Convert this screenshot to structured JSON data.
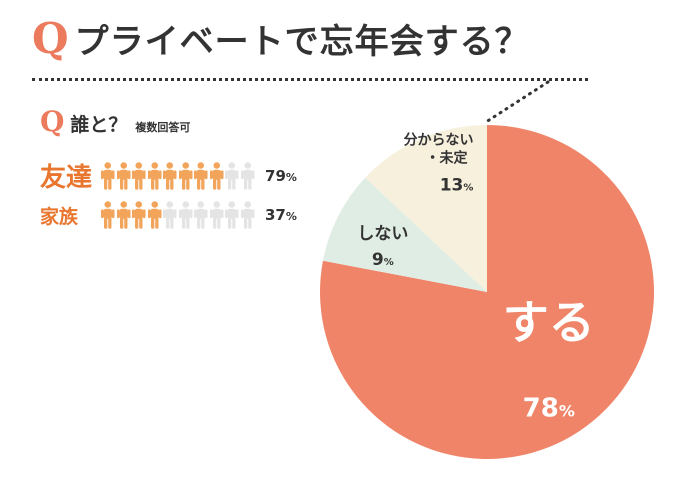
{
  "header": {
    "q_mark": "Q",
    "question": "プライベートで忘年会する？"
  },
  "sub_question": {
    "q_mark": "Q",
    "text": "誰と？",
    "note": "複数回答可"
  },
  "chart_data": [
    {
      "type": "pie",
      "slices": [
        {
          "label": "する",
          "value": 78,
          "display": "78",
          "color": "#ef8468"
        },
        {
          "label": "しない",
          "value": 9,
          "display": "9",
          "color": "#e0ede4"
        },
        {
          "label_lines": [
            "分からない",
            "・未定"
          ],
          "value": 13,
          "display": "13",
          "color": "#f6f0dc"
        }
      ],
      "unit": "%"
    },
    {
      "type": "bar",
      "categories": [
        "友達",
        "家族"
      ],
      "values": [
        79,
        37
      ],
      "unit": "%",
      "icon": "person-icon",
      "icon_count": 10,
      "filled_color": "#f2a45a",
      "empty_color": "#e4e4e4"
    }
  ]
}
